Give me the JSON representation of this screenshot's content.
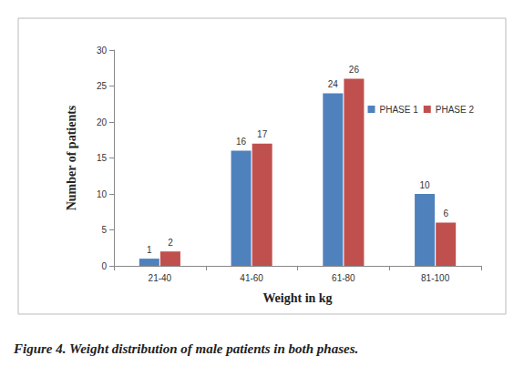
{
  "chart_data": {
    "type": "bar",
    "title": "Figure 4. Weight distribution of male patients in both phases.",
    "x_label": "Weight in kg",
    "y_label": "Number of patients",
    "categories": [
      "21-40",
      "41-60",
      "61-80",
      "81-100"
    ],
    "series": [
      {
        "name": "PHASE 1",
        "color": "#4f81bd",
        "values": [
          1,
          16,
          24,
          10
        ]
      },
      {
        "name": "PHASE 2",
        "color": "#c0504d",
        "values": [
          2,
          17,
          26,
          6
        ]
      }
    ],
    "ylim": [
      0,
      30
    ],
    "yticks": [
      0,
      5,
      10,
      15,
      20,
      25,
      30
    ],
    "grid": false,
    "legend": "right",
    "data_labels": true
  }
}
